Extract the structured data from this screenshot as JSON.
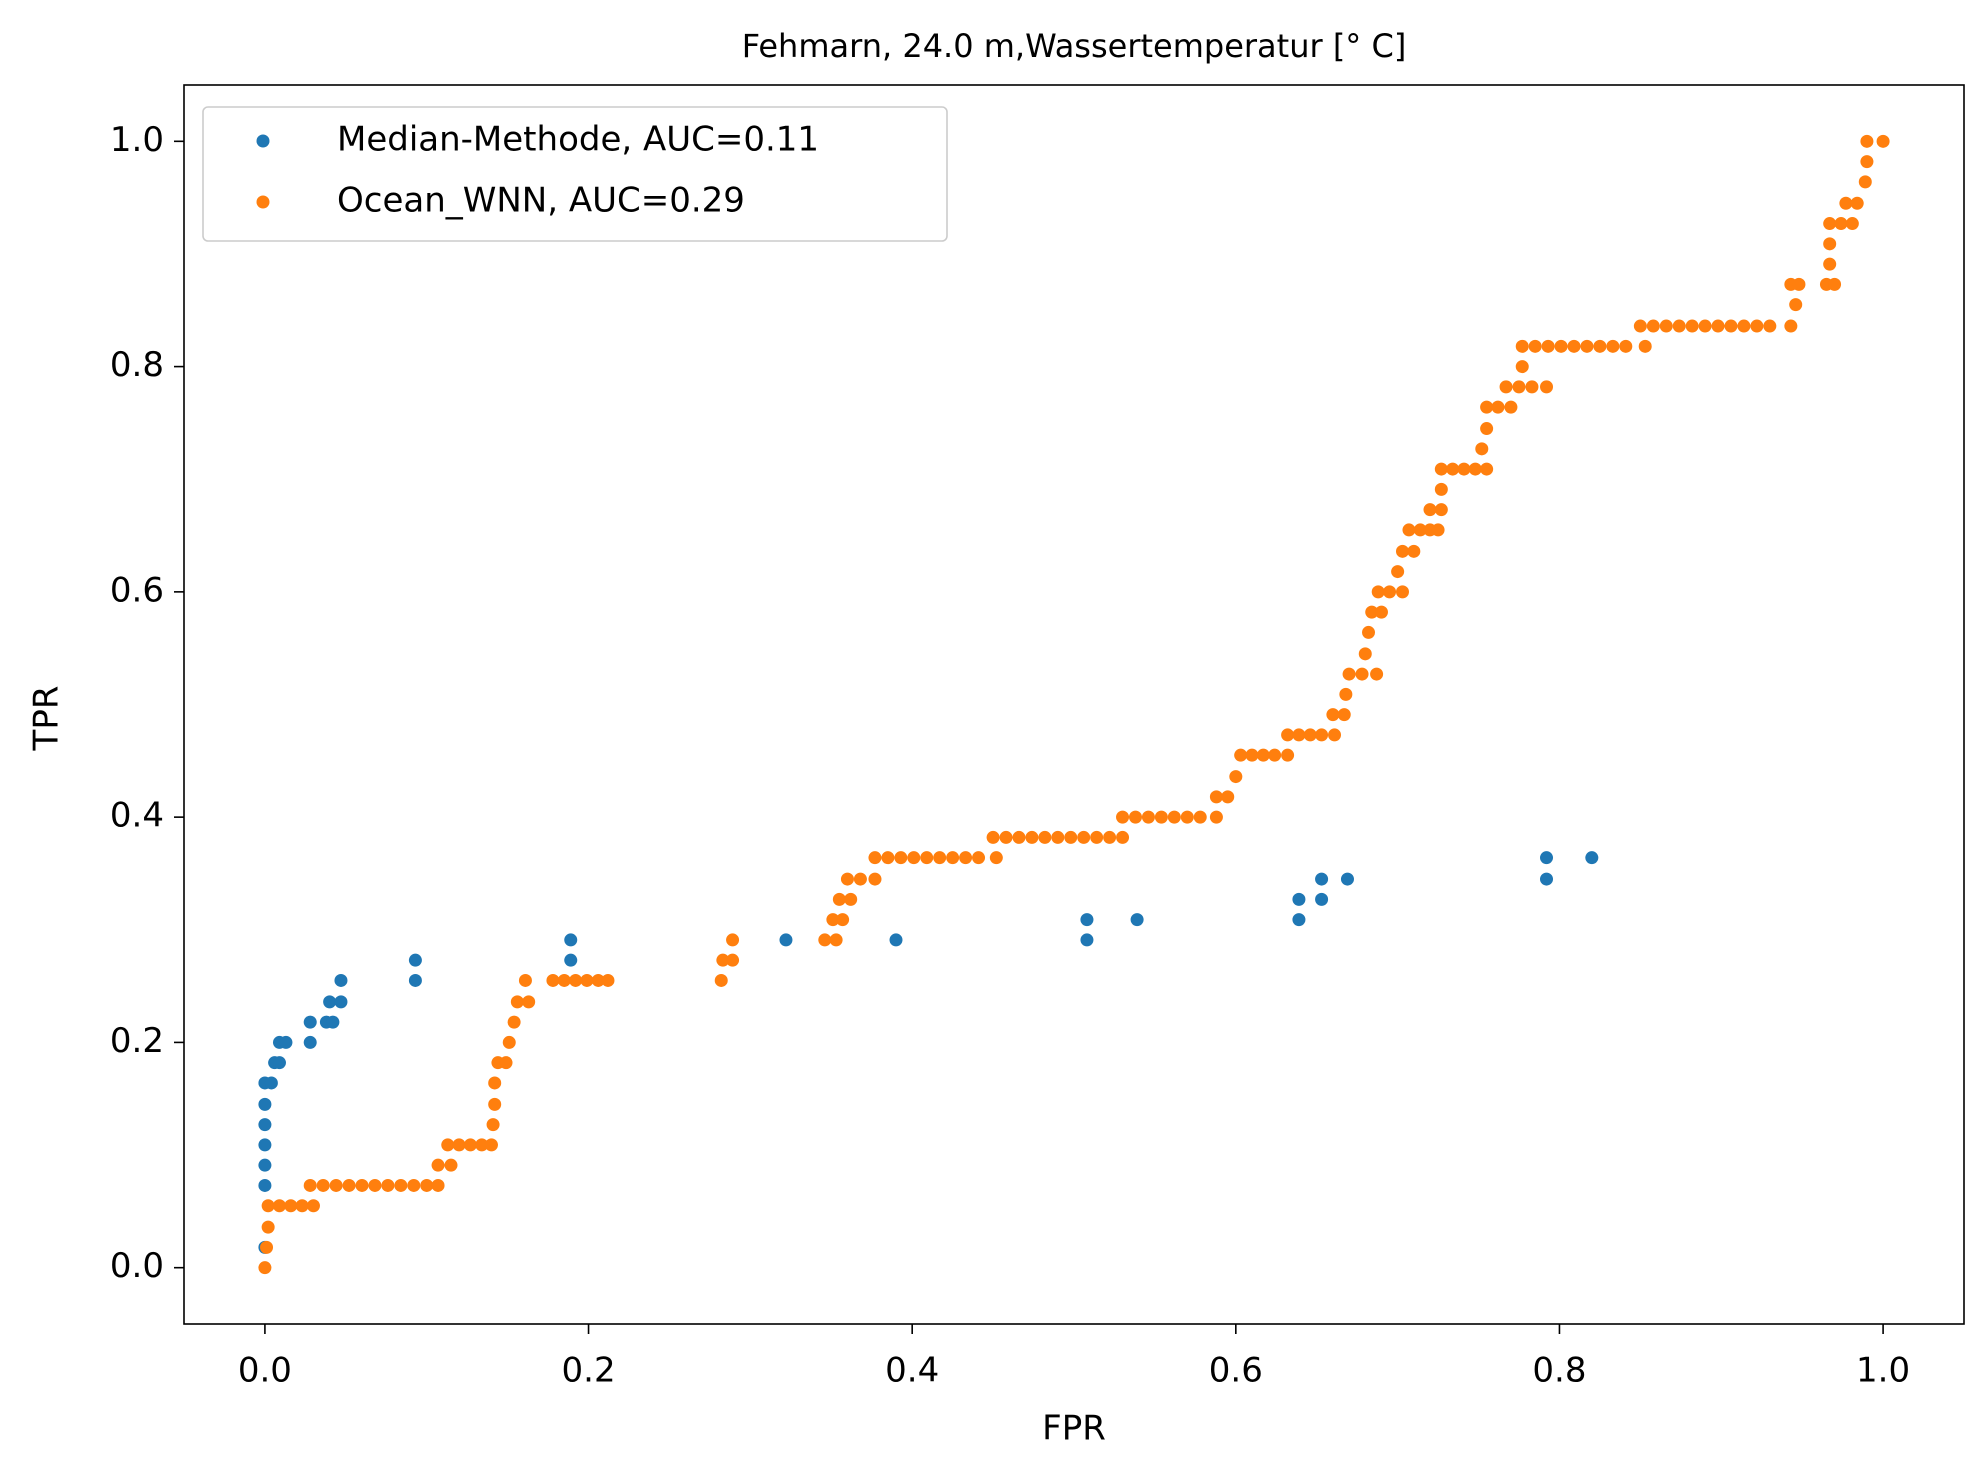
{
  "chart_data": {
    "type": "scatter",
    "title": "Fehmarn, 24.0 m,Wassertemperatur [° C]",
    "x_label": "FPR",
    "y_label": "TPR",
    "xlim": [
      -0.05,
      1.05
    ],
    "ylim": [
      -0.05,
      1.05
    ],
    "xticks": [
      {
        "value": 0,
        "label": "0.0"
      },
      0.2,
      0.4,
      0.6,
      0.8,
      {
        "value": 1,
        "label": "1.0"
      }
    ],
    "yticks": [
      {
        "value": 0,
        "label": "0.0"
      },
      0.2,
      0.4,
      0.6,
      0.8,
      {
        "value": 1,
        "label": "1.0"
      }
    ],
    "grid": false,
    "legend": "upper left",
    "series": [
      {
        "name": "Median-Methode, AUC=0.11",
        "color": "#1f77b4",
        "x": [
          0,
          0,
          0,
          0,
          0,
          0,
          0,
          0.004,
          0.006,
          0.009,
          0.009,
          0.013,
          0.028,
          0.028,
          0.038,
          0.042,
          0.04,
          0.047,
          0.047,
          0.093,
          0.093,
          0.189,
          0.189,
          0.322,
          0.39,
          0.508,
          0.508,
          0.539,
          0.639,
          0.639,
          0.653,
          0.653,
          0.669,
          0.792,
          0.792,
          0.82
        ],
        "values": [
          0.018,
          0.073,
          0.091,
          0.109,
          0.127,
          0.145,
          0.164,
          0.164,
          0.182,
          0.182,
          0.2,
          0.2,
          0.2,
          0.218,
          0.218,
          0.218,
          0.236,
          0.236,
          0.255,
          0.255,
          0.273,
          0.273,
          0.291,
          0.291,
          0.291,
          0.291,
          0.309,
          0.309,
          0.309,
          0.327,
          0.327,
          0.345,
          0.345,
          0.345,
          0.364,
          0.364
        ]
      },
      {
        "name": "Ocean_WNN, AUC=0.29",
        "color": "#ff7f0e",
        "x": [
          0,
          0.001,
          0.002,
          0.002,
          0.009,
          0.016,
          0.023,
          0.03,
          0.028,
          0.036,
          0.044,
          0.052,
          0.06,
          0.068,
          0.076,
          0.084,
          0.092,
          0.1,
          0.107,
          0.107,
          0.115,
          0.113,
          0.12,
          0.127,
          0.134,
          0.14,
          0.141,
          0.142,
          0.142,
          0.144,
          0.149,
          0.151,
          0.154,
          0.156,
          0.163,
          0.161,
          0.178,
          0.185,
          0.192,
          0.199,
          0.206,
          0.212,
          0.282,
          0.283,
          0.289,
          0.289,
          0.346,
          0.353,
          0.351,
          0.357,
          0.355,
          0.362,
          0.36,
          0.368,
          0.377,
          0.377,
          0.385,
          0.393,
          0.401,
          0.409,
          0.417,
          0.425,
          0.433,
          0.441,
          0.452,
          0.45,
          0.458,
          0.466,
          0.474,
          0.482,
          0.49,
          0.498,
          0.506,
          0.514,
          0.522,
          0.53,
          0.53,
          0.538,
          0.546,
          0.554,
          0.562,
          0.57,
          0.578,
          0.588,
          0.588,
          0.595,
          0.6,
          0.603,
          0.61,
          0.617,
          0.624,
          0.632,
          0.632,
          0.639,
          0.646,
          0.653,
          0.661,
          0.66,
          0.667,
          0.668,
          0.67,
          0.678,
          0.687,
          0.68,
          0.682,
          0.684,
          0.69,
          0.688,
          0.695,
          0.703,
          0.7,
          0.703,
          0.71,
          0.707,
          0.714,
          0.72,
          0.725,
          0.72,
          0.727,
          0.727,
          0.727,
          0.734,
          0.741,
          0.748,
          0.755,
          0.752,
          0.755,
          0.755,
          0.762,
          0.77,
          0.767,
          0.775,
          0.783,
          0.792,
          0.777,
          0.777,
          0.785,
          0.793,
          0.801,
          0.809,
          0.817,
          0.825,
          0.833,
          0.841,
          0.853,
          0.85,
          0.858,
          0.866,
          0.874,
          0.882,
          0.89,
          0.898,
          0.906,
          0.914,
          0.922,
          0.93,
          0.943,
          0.946,
          0.943,
          0.948,
          0.965,
          0.97,
          0.967,
          0.967,
          0.967,
          0.974,
          0.981,
          0.977,
          0.984,
          0.989,
          0.99,
          0.99,
          1.0
        ],
        "values": [
          0,
          0.018,
          0.036,
          0.055,
          0.055,
          0.055,
          0.055,
          0.055,
          0.073,
          0.073,
          0.073,
          0.073,
          0.073,
          0.073,
          0.073,
          0.073,
          0.073,
          0.073,
          0.073,
          0.091,
          0.091,
          0.109,
          0.109,
          0.109,
          0.109,
          0.109,
          0.127,
          0.145,
          0.164,
          0.182,
          0.182,
          0.2,
          0.218,
          0.236,
          0.236,
          0.255,
          0.255,
          0.255,
          0.255,
          0.255,
          0.255,
          0.255,
          0.255,
          0.273,
          0.273,
          0.291,
          0.291,
          0.291,
          0.309,
          0.309,
          0.327,
          0.327,
          0.345,
          0.345,
          0.345,
          0.364,
          0.364,
          0.364,
          0.364,
          0.364,
          0.364,
          0.364,
          0.364,
          0.364,
          0.364,
          0.382,
          0.382,
          0.382,
          0.382,
          0.382,
          0.382,
          0.382,
          0.382,
          0.382,
          0.382,
          0.382,
          0.4,
          0.4,
          0.4,
          0.4,
          0.4,
          0.4,
          0.4,
          0.4,
          0.418,
          0.418,
          0.436,
          0.455,
          0.455,
          0.455,
          0.455,
          0.455,
          0.473,
          0.473,
          0.473,
          0.473,
          0.473,
          0.491,
          0.491,
          0.509,
          0.527,
          0.527,
          0.527,
          0.545,
          0.564,
          0.582,
          0.582,
          0.6,
          0.6,
          0.6,
          0.618,
          0.636,
          0.636,
          0.655,
          0.655,
          0.655,
          0.655,
          0.673,
          0.673,
          0.691,
          0.709,
          0.709,
          0.709,
          0.709,
          0.709,
          0.727,
          0.745,
          0.764,
          0.764,
          0.764,
          0.782,
          0.782,
          0.782,
          0.782,
          0.8,
          0.818,
          0.818,
          0.818,
          0.818,
          0.818,
          0.818,
          0.818,
          0.818,
          0.818,
          0.818,
          0.836,
          0.836,
          0.836,
          0.836,
          0.836,
          0.836,
          0.836,
          0.836,
          0.836,
          0.836,
          0.836,
          0.836,
          0.855,
          0.873,
          0.873,
          0.873,
          0.873,
          0.891,
          0.909,
          0.927,
          0.927,
          0.927,
          0.945,
          0.945,
          0.964,
          0.982,
          1.0,
          1.0
        ]
      }
    ]
  }
}
